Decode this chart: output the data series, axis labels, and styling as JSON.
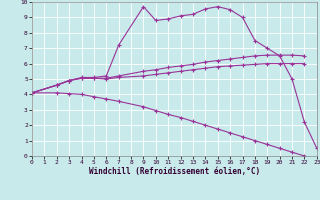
{
  "xlabel": "Windchill (Refroidissement éolien,°C)",
  "line1_x": [
    0,
    2,
    3,
    4,
    5,
    6,
    7,
    9,
    10,
    11,
    12,
    13,
    14,
    15,
    16,
    17,
    18,
    19,
    20,
    21,
    22,
    23
  ],
  "line1_y": [
    4.1,
    4.6,
    4.9,
    5.1,
    5.1,
    5.2,
    7.2,
    9.7,
    8.8,
    8.9,
    9.1,
    9.2,
    9.55,
    9.7,
    9.5,
    9.0,
    7.5,
    7.0,
    6.5,
    5.0,
    2.2,
    0.5
  ],
  "line2_x": [
    0,
    2,
    3,
    4,
    5,
    6,
    7,
    9,
    10,
    11,
    12,
    13,
    14,
    15,
    16,
    17,
    18,
    19,
    20,
    21,
    22
  ],
  "line2_y": [
    4.1,
    4.6,
    4.9,
    5.05,
    5.05,
    5.05,
    5.2,
    5.5,
    5.6,
    5.75,
    5.85,
    5.95,
    6.1,
    6.2,
    6.3,
    6.4,
    6.5,
    6.55,
    6.55,
    6.55,
    6.5
  ],
  "line3_x": [
    0,
    2,
    3,
    4,
    5,
    6,
    7,
    9,
    10,
    11,
    12,
    13,
    14,
    15,
    16,
    17,
    18,
    19,
    20,
    21,
    22
  ],
  "line3_y": [
    4.1,
    4.6,
    4.9,
    5.05,
    5.05,
    5.0,
    5.1,
    5.2,
    5.3,
    5.4,
    5.5,
    5.6,
    5.7,
    5.8,
    5.85,
    5.9,
    5.95,
    6.0,
    6.0,
    6.0,
    6.0
  ],
  "line4_x": [
    0,
    2,
    3,
    4,
    5,
    6,
    7,
    9,
    10,
    11,
    12,
    13,
    14,
    15,
    16,
    17,
    18,
    19,
    20,
    21,
    22,
    23
  ],
  "line4_y": [
    4.1,
    4.1,
    4.05,
    4.0,
    3.85,
    3.7,
    3.55,
    3.2,
    2.95,
    2.7,
    2.5,
    2.25,
    2.0,
    1.75,
    1.5,
    1.25,
    1.0,
    0.75,
    0.5,
    0.25,
    0.0,
    -0.2
  ],
  "line_color": "#993399",
  "bg_color": "#c8eaea",
  "grid_color": "#b0d8d8",
  "xlim": [
    0,
    23
  ],
  "ylim": [
    0,
    10
  ],
  "xticks": [
    0,
    1,
    2,
    3,
    4,
    5,
    6,
    7,
    8,
    9,
    10,
    11,
    12,
    13,
    14,
    15,
    16,
    17,
    18,
    19,
    20,
    21,
    22,
    23
  ],
  "yticks": [
    0,
    1,
    2,
    3,
    4,
    5,
    6,
    7,
    8,
    9,
    10
  ]
}
